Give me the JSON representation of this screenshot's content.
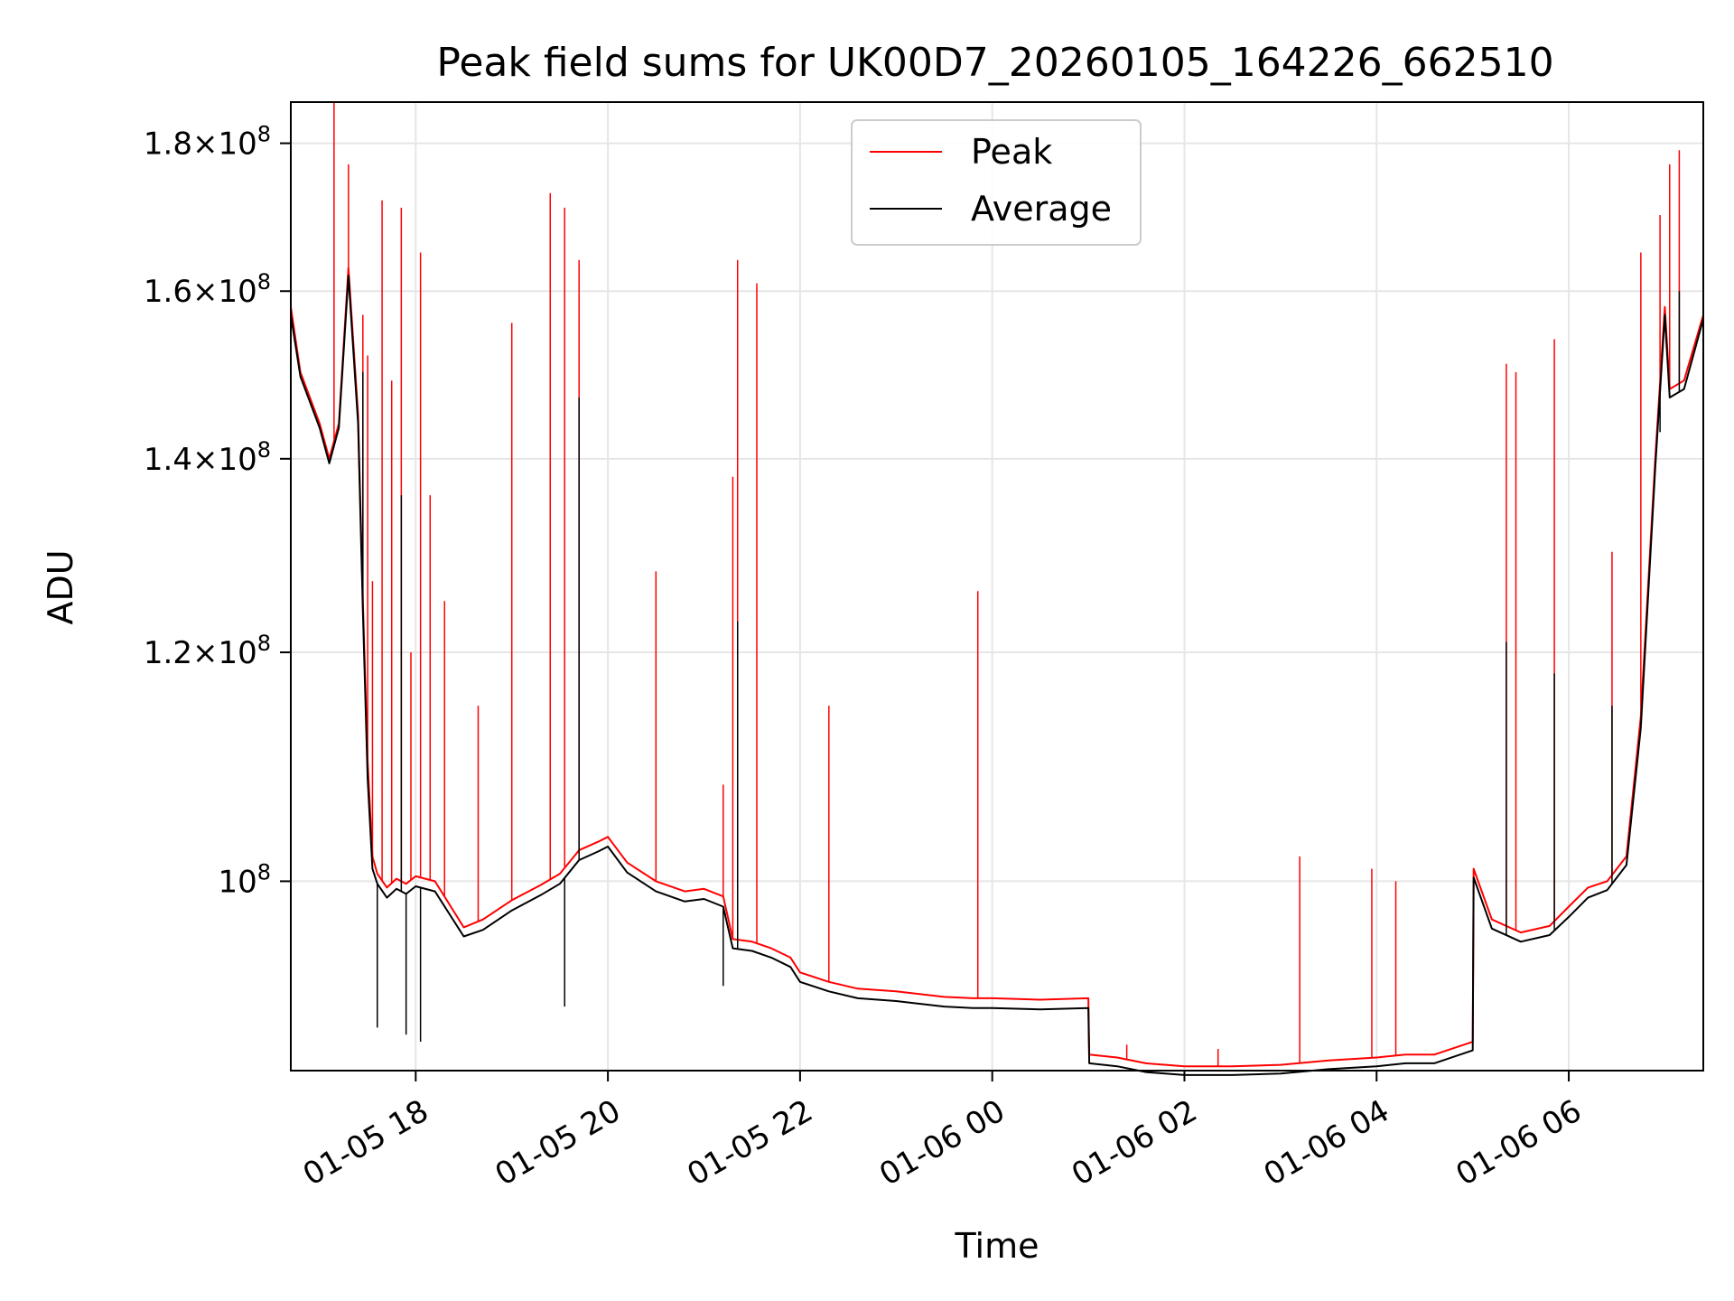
{
  "chart_data": {
    "type": "line",
    "title": "Peak field sums for UK00D7_20260105_164226_662510",
    "xlabel": "Time",
    "ylabel": "ADU",
    "yscale": "log",
    "grid": true,
    "legend_position": "upper center",
    "xlim_hours": [
      16.7,
      31.4
    ],
    "ylim": [
      86000000,
      186000000
    ],
    "x_ticks": [
      {
        "hour": 18,
        "label": "01-05 18"
      },
      {
        "hour": 20,
        "label": "01-05 20"
      },
      {
        "hour": 22,
        "label": "01-05 22"
      },
      {
        "hour": 24,
        "label": "01-06 00"
      },
      {
        "hour": 26,
        "label": "01-06 02"
      },
      {
        "hour": 28,
        "label": "01-06 04"
      },
      {
        "hour": 30,
        "label": "01-06 06"
      }
    ],
    "y_ticks": [
      {
        "value": 100000000,
        "mant": "",
        "exp": "8"
      },
      {
        "value": 120000000,
        "mant": "1.2",
        "exp": "8"
      },
      {
        "value": 140000000,
        "mant": "1.4",
        "exp": "8"
      },
      {
        "value": 160000000,
        "mant": "1.6",
        "exp": "8"
      },
      {
        "value": 180000000,
        "mant": "1.8",
        "exp": "8"
      }
    ],
    "series": [
      {
        "name": "Peak",
        "color": "#ff0000",
        "x_hours": [
          16.7,
          16.8,
          17.0,
          17.1,
          17.2,
          17.3,
          17.4,
          17.45,
          17.5,
          17.55,
          17.6,
          17.7,
          17.8,
          17.9,
          18.0,
          18.2,
          18.5,
          18.7,
          19.0,
          19.3,
          19.5,
          19.7,
          19.9,
          20.0,
          20.2,
          20.5,
          20.8,
          21.0,
          21.2,
          21.3,
          21.5,
          21.7,
          21.9,
          22.0,
          22.3,
          22.6,
          23.0,
          23.5,
          23.8,
          24.0,
          24.5,
          25.0,
          25.01,
          25.3,
          25.6,
          26.0,
          26.5,
          27.0,
          27.5,
          28.0,
          28.3,
          28.6,
          29.0,
          29.01,
          29.2,
          29.5,
          29.8,
          30.0,
          30.2,
          30.4,
          30.6,
          30.75,
          30.9,
          31.0,
          31.05,
          31.2,
          31.4
        ],
        "y": [
          158000000,
          150000000,
          144000000,
          140000000,
          144000000,
          163000000,
          145000000,
          125000000,
          110000000,
          102000000,
          100600000,
          99500000,
          100200000,
          99800000,
          100400000,
          100000000,
          96400000,
          97000000,
          98500000,
          99700000,
          100600000,
          102500000,
          103200000,
          103600000,
          101500000,
          100000000,
          99200000,
          99400000,
          98800000,
          95500000,
          95300000,
          94800000,
          94100000,
          93000000,
          92300000,
          91800000,
          91600000,
          91200000,
          91100000,
          91100000,
          91000000,
          91100000,
          87100000,
          86900000,
          86500000,
          86300000,
          86300000,
          86400000,
          86700000,
          86900000,
          87100000,
          87100000,
          88000000,
          101000000,
          97000000,
          96000000,
          96500000,
          98000000,
          99500000,
          100000000,
          102000000,
          114000000,
          140000000,
          158000000,
          148000000,
          149000000,
          157000000
        ],
        "spikes": [
          {
            "hour": 17.15,
            "value": 186000000
          },
          {
            "hour": 17.3,
            "value": 177000000
          },
          {
            "hour": 17.45,
            "value": 157000000
          },
          {
            "hour": 17.5,
            "value": 152000000
          },
          {
            "hour": 17.55,
            "value": 127000000
          },
          {
            "hour": 17.65,
            "value": 172000000
          },
          {
            "hour": 17.75,
            "value": 149000000
          },
          {
            "hour": 17.85,
            "value": 171000000
          },
          {
            "hour": 17.95,
            "value": 120000000
          },
          {
            "hour": 18.05,
            "value": 165000000
          },
          {
            "hour": 18.15,
            "value": 136000000
          },
          {
            "hour": 18.3,
            "value": 125000000
          },
          {
            "hour": 18.65,
            "value": 115000000
          },
          {
            "hour": 19.0,
            "value": 156000000
          },
          {
            "hour": 19.4,
            "value": 173000000
          },
          {
            "hour": 19.55,
            "value": 171000000
          },
          {
            "hour": 19.7,
            "value": 164000000
          },
          {
            "hour": 20.5,
            "value": 128000000
          },
          {
            "hour": 21.2,
            "value": 108000000
          },
          {
            "hour": 21.3,
            "value": 138000000
          },
          {
            "hour": 21.35,
            "value": 164000000
          },
          {
            "hour": 21.55,
            "value": 161000000
          },
          {
            "hour": 22.3,
            "value": 115000000
          },
          {
            "hour": 23.85,
            "value": 126000000
          },
          {
            "hour": 25.4,
            "value": 87800000
          },
          {
            "hour": 26.35,
            "value": 87500000
          },
          {
            "hour": 27.2,
            "value": 102000000
          },
          {
            "hour": 27.95,
            "value": 101000000
          },
          {
            "hour": 28.2,
            "value": 100000000
          },
          {
            "hour": 29.35,
            "value": 151000000
          },
          {
            "hour": 29.45,
            "value": 150000000
          },
          {
            "hour": 29.85,
            "value": 154000000
          },
          {
            "hour": 30.45,
            "value": 130000000
          },
          {
            "hour": 30.75,
            "value": 165000000
          },
          {
            "hour": 30.95,
            "value": 170000000
          },
          {
            "hour": 31.05,
            "value": 177000000
          },
          {
            "hour": 31.15,
            "value": 179000000
          }
        ]
      },
      {
        "name": "Average",
        "color": "#000000",
        "x_hours": [
          16.7,
          16.8,
          17.0,
          17.1,
          17.2,
          17.3,
          17.4,
          17.45,
          17.5,
          17.55,
          17.6,
          17.7,
          17.8,
          17.9,
          18.0,
          18.2,
          18.5,
          18.7,
          19.0,
          19.3,
          19.5,
          19.7,
          19.9,
          20.0,
          20.2,
          20.5,
          20.8,
          21.0,
          21.2,
          21.3,
          21.5,
          21.7,
          21.9,
          22.0,
          22.3,
          22.6,
          23.0,
          23.5,
          23.8,
          24.0,
          24.5,
          25.0,
          25.01,
          25.3,
          25.6,
          26.0,
          26.5,
          27.0,
          27.5,
          28.0,
          28.3,
          28.6,
          29.0,
          29.01,
          29.2,
          29.5,
          29.8,
          30.0,
          30.2,
          30.4,
          30.6,
          30.75,
          30.9,
          31.0,
          31.05,
          31.2,
          31.4
        ],
        "y": [
          157000000,
          149500000,
          143500000,
          139500000,
          143500000,
          162000000,
          144000000,
          124000000,
          108500000,
          101000000,
          99800000,
          98700000,
          99400000,
          99000000,
          99600000,
          99200000,
          95700000,
          96200000,
          97700000,
          98900000,
          99800000,
          101700000,
          102400000,
          102800000,
          100700000,
          99200000,
          98400000,
          98600000,
          98000000,
          94800000,
          94600000,
          94100000,
          93400000,
          92300000,
          91600000,
          91100000,
          90900000,
          90500000,
          90400000,
          90400000,
          90300000,
          90400000,
          86500000,
          86300000,
          85900000,
          85700000,
          85700000,
          85800000,
          86100000,
          86300000,
          86500000,
          86500000,
          87400000,
          100300000,
          96300000,
          95300000,
          95800000,
          97200000,
          98700000,
          99300000,
          101300000,
          113000000,
          139000000,
          157000000,
          147000000,
          148000000,
          156500000
        ],
        "spikes": [
          {
            "hour": 17.45,
            "value": 150000000
          },
          {
            "hour": 17.85,
            "value": 136000000
          },
          {
            "hour": 19.7,
            "value": 147000000
          },
          {
            "hour": 21.35,
            "value": 123000000
          },
          {
            "hour": 29.35,
            "value": 121000000
          },
          {
            "hour": 29.85,
            "value": 118000000
          },
          {
            "hour": 30.45,
            "value": 115000000
          },
          {
            "hour": 30.95,
            "value": 143000000
          },
          {
            "hour": 31.15,
            "value": 160000000
          }
        ],
        "dips": [
          {
            "hour": 17.6,
            "value": 89000000
          },
          {
            "hour": 17.9,
            "value": 88500000
          },
          {
            "hour": 18.05,
            "value": 88000000
          },
          {
            "hour": 19.55,
            "value": 90500000
          },
          {
            "hour": 21.2,
            "value": 92000000
          }
        ]
      }
    ]
  }
}
